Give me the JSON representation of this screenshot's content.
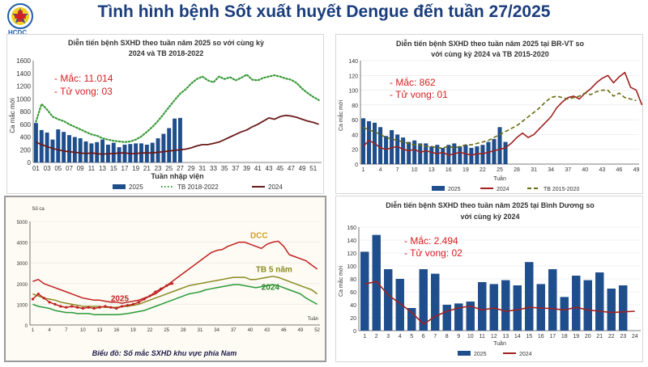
{
  "header": {
    "title": "Tình hình bệnh Sốt xuất huyết Dengue đến tuần 27/2025",
    "logo_text": "HCDC",
    "logo_icon": "hcdc-logo-icon"
  },
  "chart_data": [
    {
      "type": "bar",
      "title_line1": "Diễn tiến bệnh SXHD theo tuần năm 2025 so với cùng kỳ",
      "title_line2": "2024 và TB 2018-2022",
      "ylabel": "Ca mắc mới",
      "xlabel": "Tuần nhập viện",
      "ylim": [
        0,
        1600
      ],
      "yticks": [
        0,
        200,
        400,
        600,
        800,
        1000,
        1200,
        1400,
        1600
      ],
      "x_range": [
        1,
        52
      ],
      "xticks": [
        "01",
        "03",
        "05",
        "07",
        "09",
        "11",
        "13",
        "15",
        "17",
        "19",
        "21",
        "23",
        "25",
        "27",
        "29",
        "31",
        "33",
        "35",
        "37",
        "39",
        "41",
        "43",
        "45",
        "47",
        "49",
        "51"
      ],
      "annotations": [
        "- Mắc: 11.014",
        "- Tử vong: 03"
      ],
      "annotation_color": "#d62020",
      "series": [
        {
          "name": "2025",
          "kind": "bar",
          "color": "#1f4e8c",
          "values": [
            620,
            510,
            470,
            360,
            520,
            480,
            430,
            400,
            380,
            330,
            300,
            320,
            360,
            280,
            310,
            240,
            280,
            290,
            300,
            300,
            280,
            310,
            380,
            450,
            540,
            690,
            700
          ]
        },
        {
          "name": "TB 2018-2022",
          "kind": "line",
          "style": "dotted",
          "color": "#3a9a3a",
          "values": [
            640,
            920,
            830,
            720,
            680,
            650,
            600,
            560,
            520,
            480,
            440,
            420,
            380,
            360,
            340,
            330,
            320,
            330,
            360,
            410,
            480,
            560,
            650,
            760,
            870,
            980,
            1080,
            1150,
            1240,
            1310,
            1350,
            1290,
            1260,
            1350,
            1310,
            1340,
            1290,
            1330,
            1380,
            1300,
            1290,
            1330,
            1350,
            1370,
            1350,
            1320,
            1300,
            1250,
            1160,
            1090,
            1030,
            980
          ]
        },
        {
          "name": "2024",
          "kind": "line",
          "style": "solid",
          "color": "#6b1a1a",
          "values": [
            320,
            280,
            250,
            220,
            200,
            180,
            170,
            160,
            150,
            140,
            150,
            140,
            130,
            140,
            140,
            150,
            150,
            140,
            140,
            150,
            150,
            150,
            160,
            170,
            180,
            190,
            200,
            210,
            230,
            260,
            280,
            280,
            300,
            320,
            360,
            400,
            440,
            480,
            510,
            560,
            600,
            650,
            700,
            680,
            720,
            740,
            730,
            710,
            680,
            650,
            630,
            600
          ]
        }
      ]
    },
    {
      "type": "bar",
      "title_line1": "Diễn tiến bệnh SXHD theo tuần năm 2025 tại BR-VT so",
      "title_line2": "với cùng kỳ 2024 và TB 2015-2020",
      "ylabel": "Ca mắc mới",
      "xlabel": "Tuần",
      "ylim": [
        0,
        140
      ],
      "yticks": [
        0,
        20,
        40,
        60,
        80,
        100,
        120,
        140
      ],
      "x_range": [
        1,
        49
      ],
      "xticks": [
        "1",
        "4",
        "7",
        "10",
        "13",
        "16",
        "19",
        "22",
        "25",
        "28",
        "31",
        "34",
        "37",
        "40",
        "43",
        "46",
        "49"
      ],
      "annotations": [
        "- Mắc: 862",
        "- Tử vong: 01"
      ],
      "annotation_color": "#d62020",
      "series": [
        {
          "name": "2025",
          "kind": "bar",
          "color": "#1f4e8c",
          "values": [
            62,
            58,
            56,
            50,
            38,
            46,
            40,
            36,
            30,
            32,
            28,
            28,
            24,
            26,
            22,
            26,
            28,
            24,
            26,
            22,
            24,
            26,
            30,
            34,
            50,
            30
          ]
        },
        {
          "name": "2024",
          "kind": "line",
          "style": "solid",
          "color": "#a02020",
          "values": [
            24,
            32,
            28,
            22,
            20,
            22,
            24,
            20,
            18,
            20,
            16,
            18,
            16,
            14,
            16,
            12,
            14,
            16,
            14,
            12,
            14,
            14,
            16,
            18,
            20,
            22,
            28,
            36,
            42,
            36,
            40,
            48,
            56,
            64,
            76,
            84,
            90,
            92,
            88,
            96,
            102,
            110,
            116,
            120,
            110,
            118,
            124,
            104,
            100,
            80
          ]
        },
        {
          "name": "TB 2015-2020",
          "kind": "line",
          "style": "dashed",
          "color": "#6b6b10",
          "values": [
            50,
            46,
            44,
            40,
            36,
            34,
            32,
            30,
            28,
            26,
            26,
            24,
            24,
            22,
            22,
            24,
            22,
            24,
            26,
            26,
            28,
            30,
            32,
            36,
            40,
            44,
            48,
            52,
            58,
            64,
            70,
            76,
            84,
            90,
            92,
            90,
            88,
            90,
            92,
            96,
            94,
            98,
            100,
            100,
            92,
            96,
            90,
            88,
            86
          ]
        }
      ]
    },
    {
      "type": "line",
      "title": "Biểu đồ: Số mắc SXHD khu vực phía Nam",
      "ylabel": "Số ca",
      "xlabel": "Tuần",
      "ylim": [
        0,
        5000
      ],
      "yticks": [
        0,
        1000,
        2000,
        3000,
        4000,
        5000
      ],
      "x_range": [
        1,
        52
      ],
      "xticks": [
        "1",
        "4",
        "7",
        "10",
        "13",
        "16",
        "19",
        "22",
        "25",
        "28",
        "31",
        "34",
        "37",
        "40",
        "43",
        "46",
        "49",
        "52"
      ],
      "series": [
        {
          "name": "DCC",
          "label_color": "#d4a020",
          "color": "#c02020",
          "values": [
            2100,
            2200,
            2000,
            1900,
            1800,
            1700,
            1600,
            1500,
            1400,
            1300,
            1250,
            1200,
            1200,
            1150,
            1100,
            1100,
            1050,
            1100,
            1150,
            1200,
            1300,
            1400,
            1500,
            1700,
            1900,
            2100,
            2300,
            2500,
            2700,
            2900,
            3100,
            3300,
            3500,
            3600,
            3650,
            3800,
            3900,
            4000,
            4000,
            3900,
            3800,
            3700,
            3900,
            4000,
            4050,
            3800,
            3400,
            3300,
            3200,
            3100,
            2900,
            2700
          ]
        },
        {
          "name": "TB 5 năm",
          "label_color": "#8a8a20",
          "color": "#8a8a20",
          "values": [
            1500,
            1400,
            1300,
            1250,
            1200,
            1100,
            1050,
            1000,
            950,
            900,
            900,
            900,
            900,
            850,
            850,
            850,
            900,
            900,
            950,
            1000,
            1100,
            1200,
            1300,
            1400,
            1500,
            1600,
            1700,
            1800,
            1900,
            1950,
            2000,
            2050,
            2100,
            2150,
            2200,
            2250,
            2300,
            2300,
            2300,
            2200,
            2200,
            2250,
            2300,
            2350,
            2300,
            2200,
            2100,
            2000,
            1900,
            1800,
            1700,
            1500
          ]
        },
        {
          "name": "2024",
          "label_color": "#2a8a2a",
          "color": "#2a9a3a",
          "values": [
            1000,
            900,
            850,
            800,
            700,
            650,
            600,
            600,
            550,
            550,
            550,
            500,
            500,
            500,
            500,
            500,
            520,
            550,
            600,
            650,
            700,
            800,
            900,
            1000,
            1100,
            1200,
            1300,
            1400,
            1500,
            1550,
            1600,
            1700,
            1750,
            1800,
            1850,
            1900,
            1950,
            1950,
            1900,
            1850,
            1800,
            1850,
            1900,
            1950,
            1900,
            1800,
            1700,
            1600,
            1500,
            1300,
            1150,
            1000
          ]
        },
        {
          "name": "2025",
          "label_color": "#c02020",
          "color": "#c02020",
          "values": [
            1250,
            1500,
            1300,
            1100,
            1000,
            900,
            850,
            900,
            850,
            800,
            850,
            800,
            850,
            900,
            850,
            800,
            900,
            950,
            1000,
            1100,
            1250,
            1400,
            1600,
            1750,
            1900,
            2000
          ]
        }
      ]
    },
    {
      "type": "bar",
      "title_line1": "Diễn tiến bệnh SXHD theo tuần năm 2025 tại Bình Dương so",
      "title_line2": "với cùng kỳ 2024",
      "ylabel": "Ca mắc mới",
      "xlabel": "Tuần",
      "ylim": [
        0,
        160
      ],
      "yticks": [
        0,
        20,
        40,
        60,
        80,
        100,
        120,
        140,
        160
      ],
      "x_range": [
        1,
        24
      ],
      "xticks": [
        "1",
        "2",
        "3",
        "4",
        "5",
        "6",
        "7",
        "8",
        "9",
        "10",
        "11",
        "12",
        "13",
        "14",
        "15",
        "16",
        "17",
        "18",
        "19",
        "20",
        "21",
        "22",
        "23",
        "24"
      ],
      "annotations": [
        "- Mắc: 2.494",
        "- Tử vong: 02"
      ],
      "annotation_color": "#d62020",
      "series": [
        {
          "name": "2025",
          "kind": "bar",
          "color": "#1f4e8c",
          "values": [
            122,
            148,
            95,
            80,
            35,
            95,
            88,
            40,
            42,
            45,
            75,
            72,
            78,
            70,
            106,
            72,
            95,
            52,
            85,
            78,
            90,
            65,
            70
          ]
        },
        {
          "name": "2024",
          "kind": "line",
          "style": "solid",
          "color": "#a02020",
          "values": [
            72,
            76,
            55,
            42,
            28,
            10,
            22,
            30,
            35,
            38,
            32,
            35,
            30,
            32,
            36,
            35,
            34,
            32,
            36,
            32,
            30,
            28,
            29,
            30
          ]
        }
      ]
    }
  ]
}
